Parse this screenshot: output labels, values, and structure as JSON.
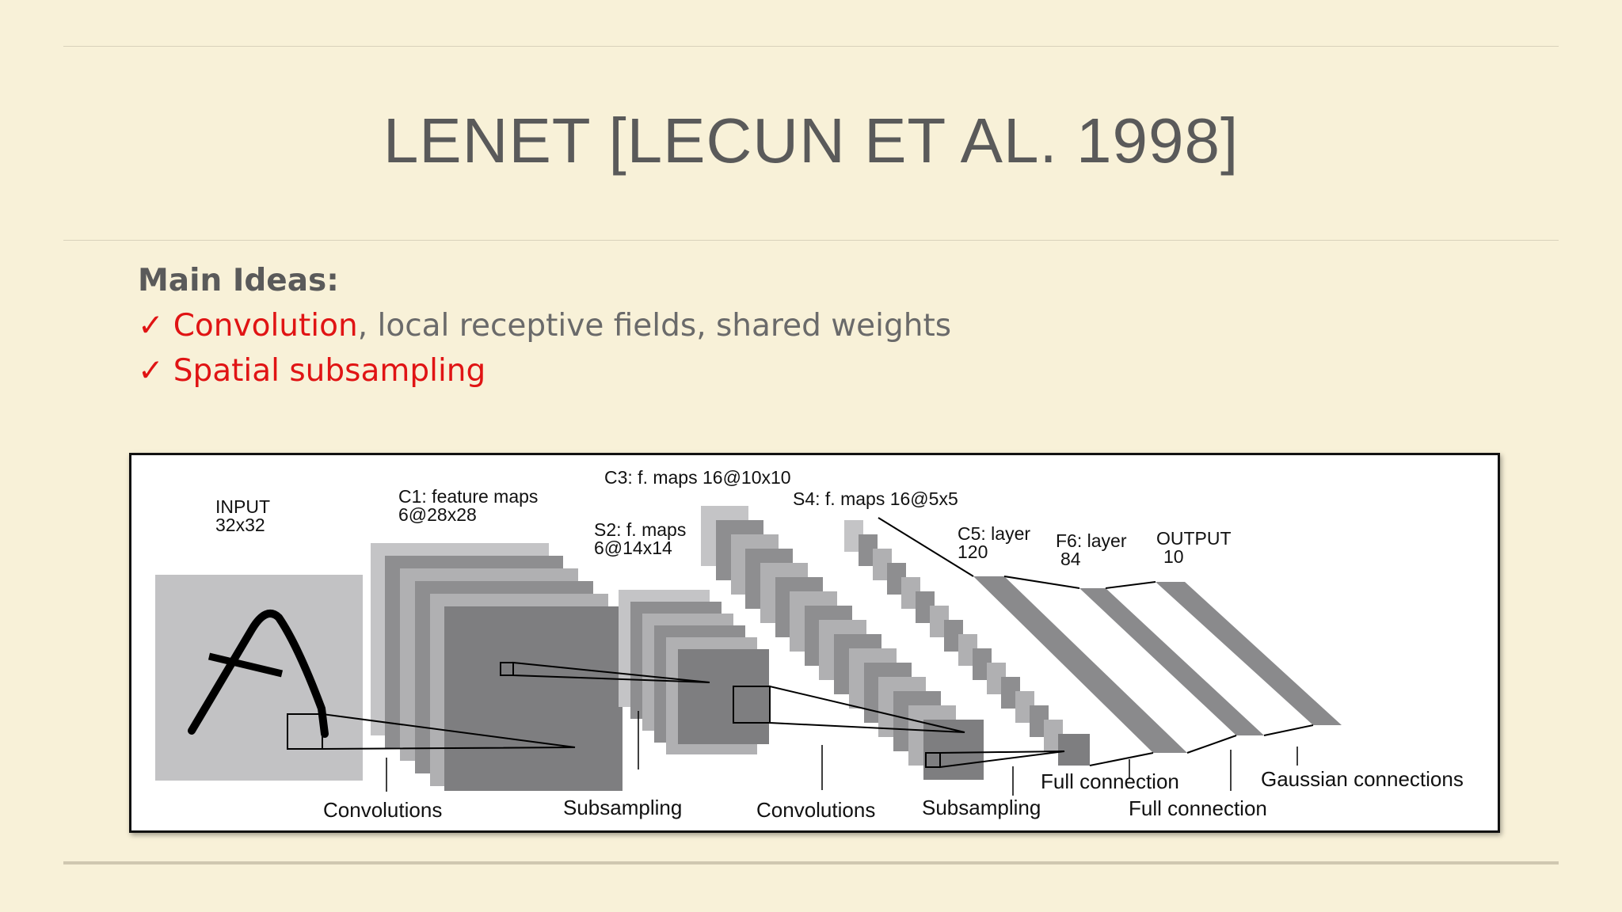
{
  "slide": {
    "title": "LENET [LECUN ET AL. 1998]",
    "heading": "Main Ideas:",
    "bullets": [
      {
        "check": "✓",
        "highlight": "Convolution",
        "rest": ", local receptive fields, shared weights"
      },
      {
        "check": "✓",
        "highlight": "Spatial subsampling",
        "rest": ""
      }
    ]
  },
  "diagram": {
    "input": {
      "line1": "INPUT",
      "line2": "32x32"
    },
    "c1": {
      "line1": "C1: feature maps",
      "line2": "6@28x28"
    },
    "s2": {
      "line1": "S2: f. maps",
      "line2": "6@14x14"
    },
    "c3": {
      "line1": "C3: f. maps 16@10x10"
    },
    "s4": {
      "line1": "S4: f. maps 16@5x5"
    },
    "c5": {
      "line1": "C5: layer",
      "line2": "120"
    },
    "f6": {
      "line1": "F6: layer",
      "line2": "84"
    },
    "output": {
      "line1": "OUTPUT",
      "line2": "10"
    },
    "ops": {
      "conv1": "Convolutions",
      "sub1": "Subsampling",
      "conv2": "Convolutions",
      "sub2": "Subsampling",
      "full1": "Full connection",
      "full2": "Full connection",
      "gauss": "Gaussian connections"
    }
  }
}
